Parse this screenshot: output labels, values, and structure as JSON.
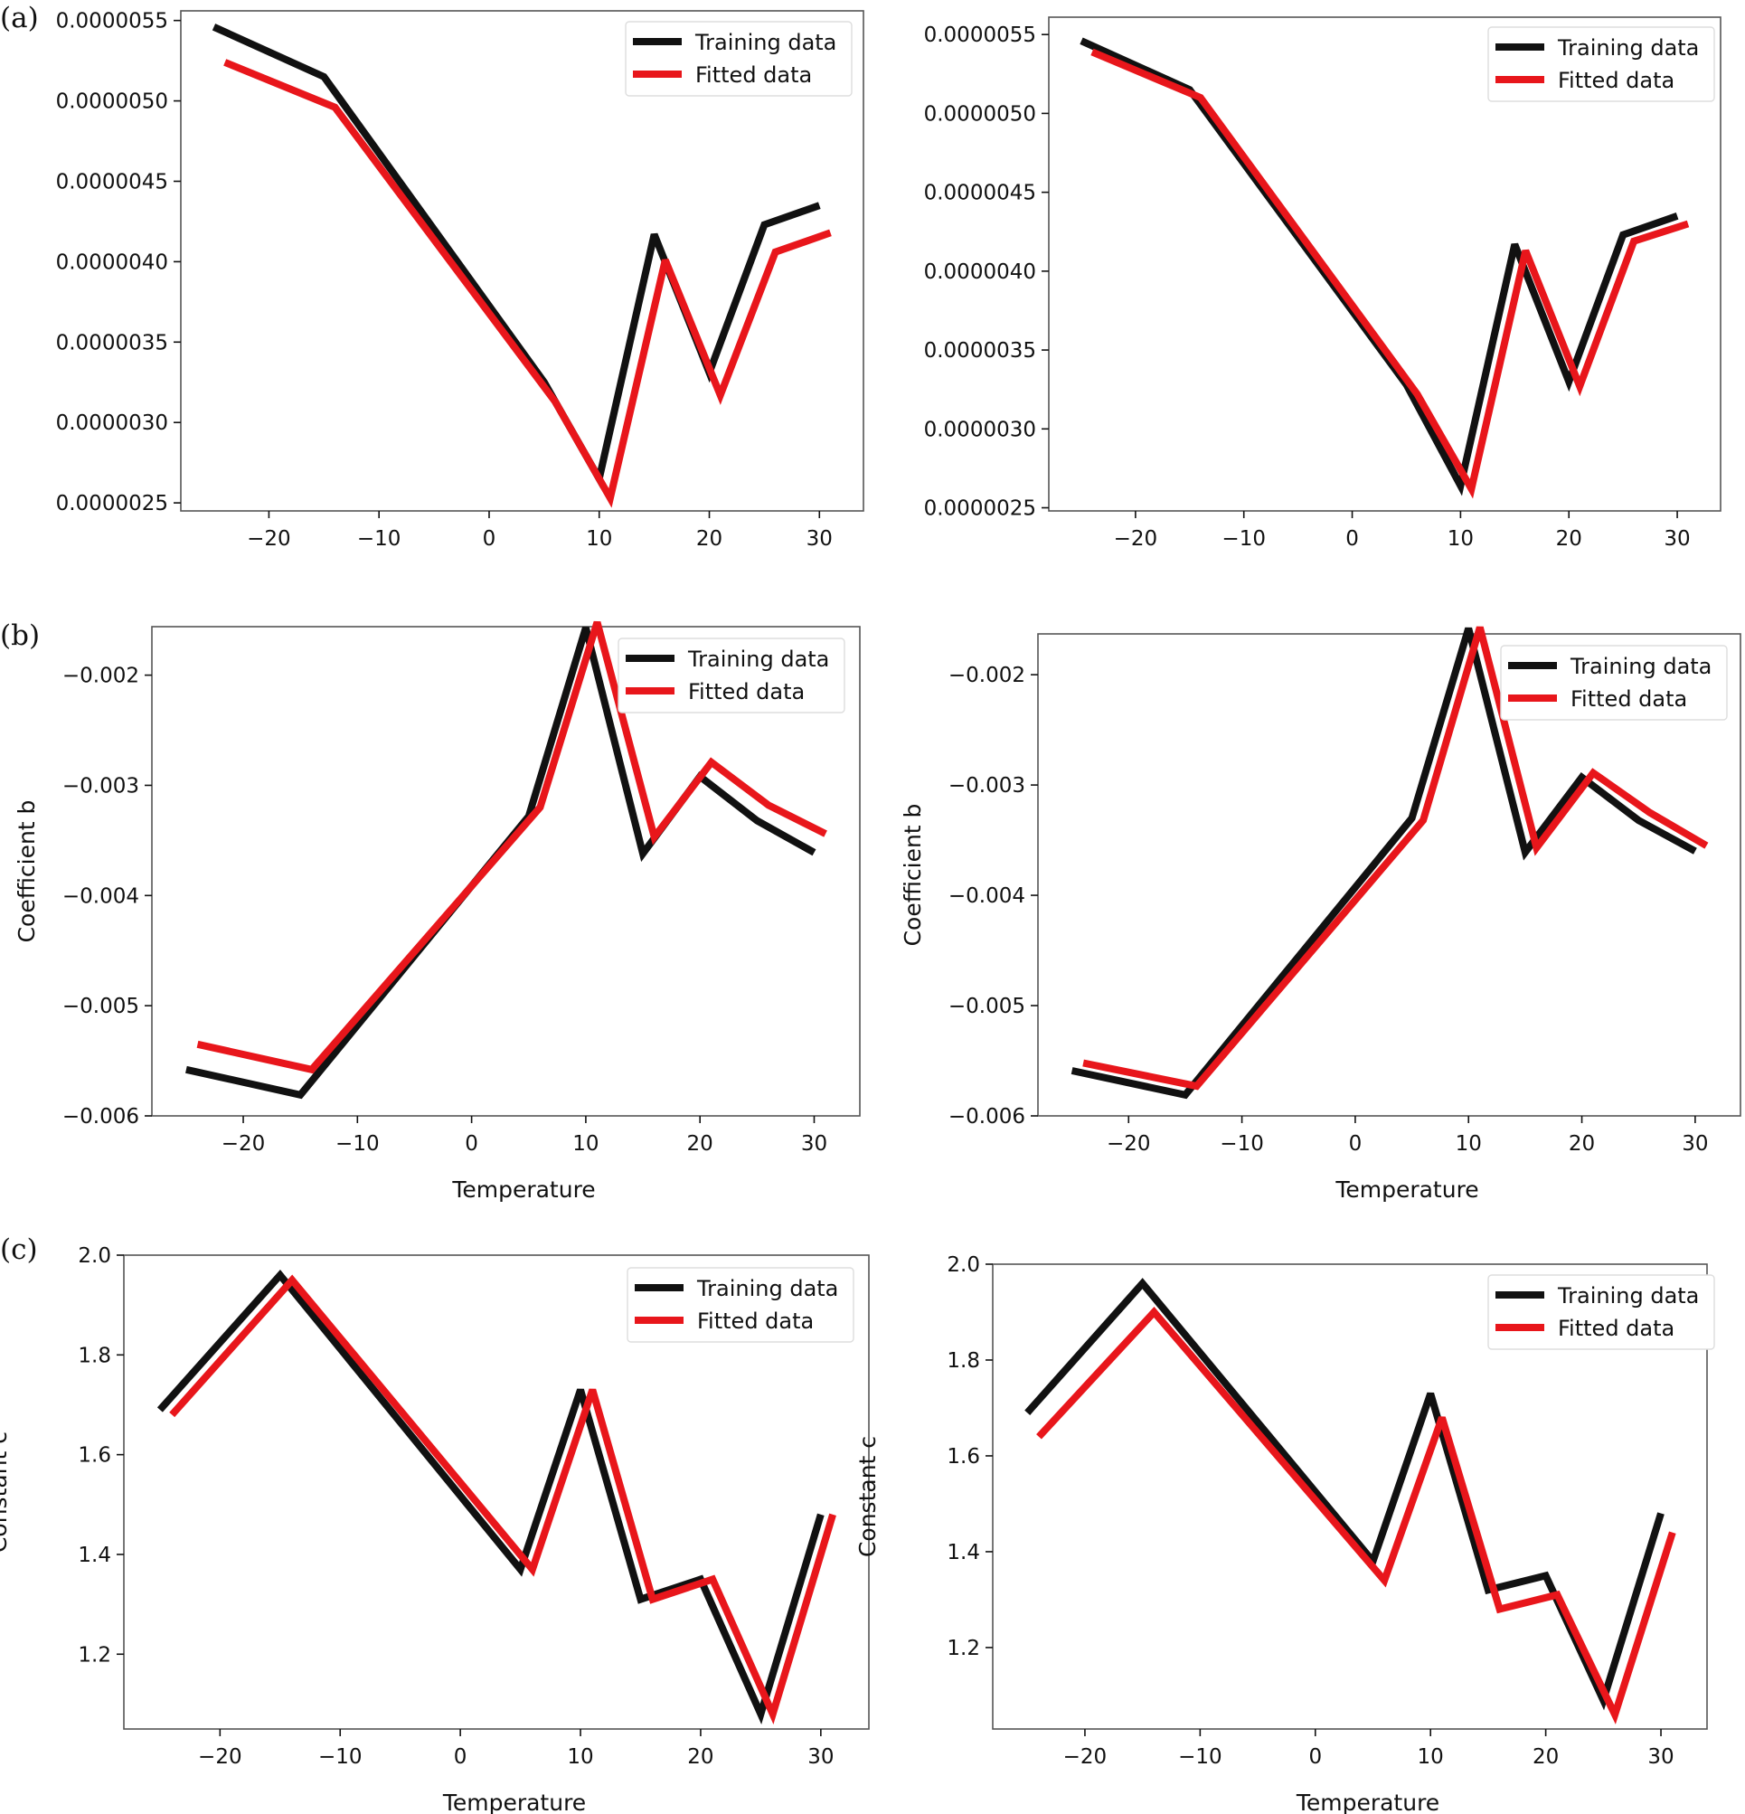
{
  "panel_labels": [
    "(a)",
    "(b)",
    "(c)"
  ],
  "legend": {
    "training": "Training data",
    "fitted": "Fitted data"
  },
  "colors": {
    "training": "#111111",
    "fitted": "#e8161b",
    "frame": "#555555"
  },
  "chart_data": [
    {
      "id": "a-left",
      "type": "line",
      "xlabel": "",
      "ylabel": "",
      "xlim": [
        -28,
        34
      ],
      "ylim": [
        2.45e-06,
        5.56e-06
      ],
      "xticks": [
        -20,
        -10,
        0,
        10,
        20,
        30
      ],
      "xtick_labels": [
        "−20",
        "−10",
        "0",
        "10",
        "20",
        "30"
      ],
      "yticks": [
        2.5e-06,
        3e-06,
        3.5e-06,
        4e-06,
        4.5e-06,
        5e-06,
        5.5e-06
      ],
      "ytick_labels": [
        "0.0000025",
        "0.0000030",
        "0.0000035",
        "0.0000040",
        "0.0000045",
        "0.0000050",
        "0.0000055"
      ],
      "legend_position": "top-right",
      "series": [
        {
          "name": "Training data",
          "color": "#111111",
          "x": [
            -25,
            -15,
            5,
            10,
            15,
            20,
            25,
            30
          ],
          "y": [
            5.46e-06,
            5.15e-06,
            3.25e-06,
            2.65e-06,
            4.17e-06,
            3.31e-06,
            4.23e-06,
            4.35e-06
          ]
        },
        {
          "name": "Fitted data",
          "color": "#e8161b",
          "x": [
            -24,
            -14,
            6,
            11,
            16,
            21,
            26,
            31
          ],
          "y": [
            5.24e-06,
            4.96e-06,
            3.13e-06,
            2.53e-06,
            4.01e-06,
            3.17e-06,
            4.06e-06,
            4.18e-06
          ]
        }
      ]
    },
    {
      "id": "a-right",
      "type": "line",
      "xlabel": "",
      "ylabel": "",
      "xlim": [
        -28,
        34
      ],
      "ylim": [
        2.48e-06,
        5.61e-06
      ],
      "xticks": [
        -20,
        -10,
        0,
        10,
        20,
        30
      ],
      "xtick_labels": [
        "−20",
        "−10",
        "0",
        "10",
        "20",
        "30"
      ],
      "yticks": [
        2.5e-06,
        3e-06,
        3.5e-06,
        4e-06,
        4.5e-06,
        5e-06,
        5.5e-06
      ],
      "ytick_labels": [
        "0.0000025",
        "0.0000030",
        "0.0000035",
        "0.0000040",
        "0.0000045",
        "0.0000050",
        "0.0000055"
      ],
      "legend_position": "top-right",
      "series": [
        {
          "name": "Training data",
          "color": "#111111",
          "x": [
            -25,
            -15,
            5,
            10,
            15,
            20,
            25,
            30
          ],
          "y": [
            5.46e-06,
            5.15e-06,
            3.28e-06,
            2.64e-06,
            4.17e-06,
            3.3e-06,
            4.23e-06,
            4.35e-06
          ]
        },
        {
          "name": "Fitted data",
          "color": "#e8161b",
          "x": [
            -24,
            -14,
            6,
            11,
            16,
            21,
            26,
            31
          ],
          "y": [
            5.39e-06,
            5.1e-06,
            3.22e-06,
            2.62e-06,
            4.13e-06,
            3.27e-06,
            4.19e-06,
            4.3e-06
          ]
        }
      ]
    },
    {
      "id": "b-left",
      "type": "line",
      "xlabel": "Temperature",
      "ylabel": "Coefficient b",
      "xlim": [
        -28,
        34
      ],
      "ylim": [
        -0.006,
        -0.00156
      ],
      "xticks": [
        -20,
        -10,
        0,
        10,
        20,
        30
      ],
      "xtick_labels": [
        "−20",
        "−10",
        "0",
        "10",
        "20",
        "30"
      ],
      "yticks": [
        -0.006,
        -0.005,
        -0.004,
        -0.003,
        -0.002
      ],
      "ytick_labels": [
        "−0.006",
        "−0.005",
        "−0.004",
        "−0.003",
        "−0.002"
      ],
      "legend_position": "top-right",
      "series": [
        {
          "name": "Training data",
          "color": "#111111",
          "x": [
            -25,
            -15,
            5,
            10,
            15,
            20,
            25,
            30
          ],
          "y": [
            -0.00558,
            -0.00581,
            -0.00328,
            -0.00157,
            -0.00362,
            -0.00292,
            -0.00332,
            -0.00361
          ]
        },
        {
          "name": "Fitted data",
          "color": "#e8161b",
          "x": [
            -24,
            -14,
            6,
            11,
            16,
            21,
            26,
            31
          ],
          "y": [
            -0.00535,
            -0.00558,
            -0.0032,
            -0.00152,
            -0.00347,
            -0.00279,
            -0.00318,
            -0.00344
          ]
        }
      ]
    },
    {
      "id": "b-right",
      "type": "line",
      "xlabel": "Temperature",
      "ylabel": "Coefficient b",
      "xlim": [
        -28,
        34
      ],
      "ylim": [
        -0.006,
        -0.00163
      ],
      "xticks": [
        -20,
        -10,
        0,
        10,
        20,
        30
      ],
      "xtick_labels": [
        "−20",
        "−10",
        "0",
        "10",
        "20",
        "30"
      ],
      "yticks": [
        -0.006,
        -0.005,
        -0.004,
        -0.003,
        -0.002
      ],
      "ytick_labels": [
        "−0.006",
        "−0.005",
        "−0.004",
        "−0.003",
        "−0.002"
      ],
      "legend_position": "top-right",
      "series": [
        {
          "name": "Training data",
          "color": "#111111",
          "x": [
            -25,
            -15,
            5,
            10,
            15,
            20,
            25,
            30
          ],
          "y": [
            -0.00559,
            -0.00581,
            -0.0033,
            -0.00158,
            -0.00361,
            -0.00293,
            -0.00332,
            -0.0036
          ]
        },
        {
          "name": "Fitted data",
          "color": "#e8161b",
          "x": [
            -24,
            -14,
            6,
            11,
            16,
            21,
            26,
            31
          ],
          "y": [
            -0.00552,
            -0.00573,
            -0.00332,
            -0.00157,
            -0.00357,
            -0.00289,
            -0.00325,
            -0.00355
          ]
        }
      ]
    },
    {
      "id": "c-left",
      "type": "line",
      "xlabel": "Temperature",
      "ylabel": "Constant c",
      "xlim": [
        -28,
        34
      ],
      "ylim": [
        1.05,
        2.0
      ],
      "xticks": [
        -20,
        -10,
        0,
        10,
        20,
        30
      ],
      "xtick_labels": [
        "−20",
        "−10",
        "0",
        "10",
        "20",
        "30"
      ],
      "yticks": [
        1.2,
        1.4,
        1.6,
        1.8,
        2.0
      ],
      "ytick_labels": [
        "1.2",
        "1.4",
        "1.6",
        "1.8",
        "2.0"
      ],
      "legend_position": "top-right",
      "series": [
        {
          "name": "Training data",
          "color": "#111111",
          "x": [
            -25,
            -15,
            5,
            10,
            15,
            20,
            25,
            30
          ],
          "y": [
            1.69,
            1.96,
            1.37,
            1.73,
            1.31,
            1.35,
            1.08,
            1.48
          ]
        },
        {
          "name": "Fitted data",
          "color": "#e8161b",
          "x": [
            -24,
            -14,
            6,
            11,
            16,
            21,
            26,
            31
          ],
          "y": [
            1.68,
            1.95,
            1.37,
            1.73,
            1.31,
            1.35,
            1.08,
            1.48
          ]
        }
      ]
    },
    {
      "id": "c-right",
      "type": "line",
      "xlabel": "Temperature",
      "ylabel": "Constant c",
      "xlim": [
        -28,
        34
      ],
      "ylim": [
        1.03,
        2.0
      ],
      "xticks": [
        -20,
        -10,
        0,
        10,
        20,
        30
      ],
      "xtick_labels": [
        "−20",
        "−10",
        "0",
        "10",
        "20",
        "30"
      ],
      "yticks": [
        1.2,
        1.4,
        1.6,
        1.8,
        2.0
      ],
      "ytick_labels": [
        "1.2",
        "1.4",
        "1.6",
        "1.8",
        "2.0"
      ],
      "legend_position": "top-right",
      "series": [
        {
          "name": "Training data",
          "color": "#111111",
          "x": [
            -25,
            -15,
            5,
            10,
            15,
            20,
            25,
            30
          ],
          "y": [
            1.69,
            1.96,
            1.38,
            1.73,
            1.32,
            1.35,
            1.09,
            1.48
          ]
        },
        {
          "name": "Fitted data",
          "color": "#e8161b",
          "x": [
            -24,
            -14,
            6,
            11,
            16,
            21,
            26,
            31
          ],
          "y": [
            1.64,
            1.9,
            1.34,
            1.68,
            1.28,
            1.31,
            1.06,
            1.44
          ]
        }
      ]
    }
  ]
}
